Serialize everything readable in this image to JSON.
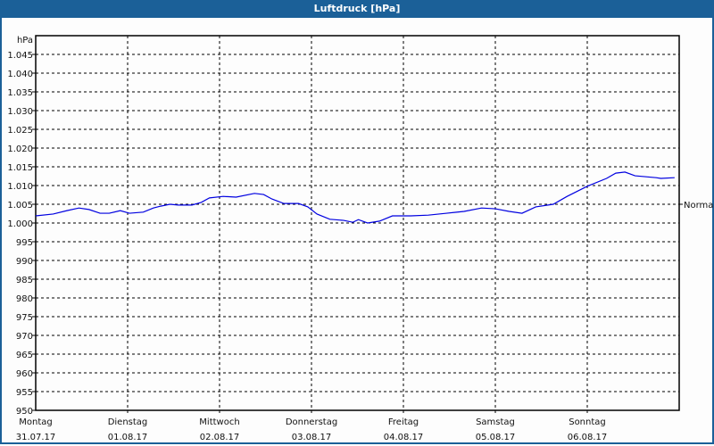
{
  "chart_data": {
    "type": "line",
    "title": "Luftdruck [hPa]",
    "ylabel": "hPa",
    "ylim": [
      950,
      1050
    ],
    "yticks": [
      "950",
      "955",
      "960",
      "965",
      "970",
      "975",
      "980",
      "985",
      "990",
      "995",
      "1.000",
      "1.005",
      "1.010",
      "1.015",
      "1.020",
      "1.025",
      "1.030",
      "1.035",
      "1.040",
      "1.045"
    ],
    "xlim": [
      0,
      7
    ],
    "xticks": [
      {
        "day": "Montag",
        "date": "31.07.17"
      },
      {
        "day": "Dienstag",
        "date": "01.08.17"
      },
      {
        "day": "Mittwoch",
        "date": "02.08.17"
      },
      {
        "day": "Donnerstag",
        "date": "03.08.17"
      },
      {
        "day": "Freitag",
        "date": "04.08.17"
      },
      {
        "day": "Samstag",
        "date": "05.08.17"
      },
      {
        "day": "Sonntag",
        "date": "06.08.17"
      }
    ],
    "reference": {
      "label": "Normal",
      "value": 1005
    },
    "line_color": "#0000e0",
    "series": [
      {
        "name": "Luftdruck",
        "x": [
          0,
          0.19,
          0.34,
          0.47,
          0.58,
          0.7,
          0.8,
          0.92,
          1.02,
          1.17,
          1.28,
          1.36,
          1.46,
          1.55,
          1.7,
          1.8,
          1.89,
          2.04,
          2.18,
          2.38,
          2.48,
          2.57,
          2.7,
          2.86,
          2.96,
          3.06,
          3.2,
          3.35,
          3.45,
          3.51,
          3.61,
          3.74,
          3.88,
          4.08,
          4.27,
          4.47,
          4.66,
          4.85,
          5,
          5.15,
          5.29,
          5.44,
          5.63,
          5.78,
          6,
          6.21,
          6.31,
          6.41,
          6.52,
          6.75,
          6.8,
          6.95
        ],
        "y": [
          1001.9,
          1002.4,
          1003.3,
          1004,
          1003.6,
          1002.6,
          1002.6,
          1003.3,
          1002.6,
          1002.9,
          1004,
          1004.5,
          1005,
          1004.8,
          1004.8,
          1005.5,
          1006.7,
          1007.1,
          1006.9,
          1007.9,
          1007.6,
          1006.4,
          1005.2,
          1005.2,
          1004.3,
          1002.4,
          1001,
          1000.7,
          1000.2,
          1000.9,
          1000,
          1000.5,
          1001.9,
          1001.9,
          1002.1,
          1002.6,
          1003.1,
          1004,
          1003.8,
          1003.1,
          1002.6,
          1004.3,
          1005,
          1007.1,
          1009.8,
          1011.9,
          1013.3,
          1013.6,
          1012.6,
          1012.1,
          1011.9,
          1012.1
        ]
      }
    ]
  }
}
